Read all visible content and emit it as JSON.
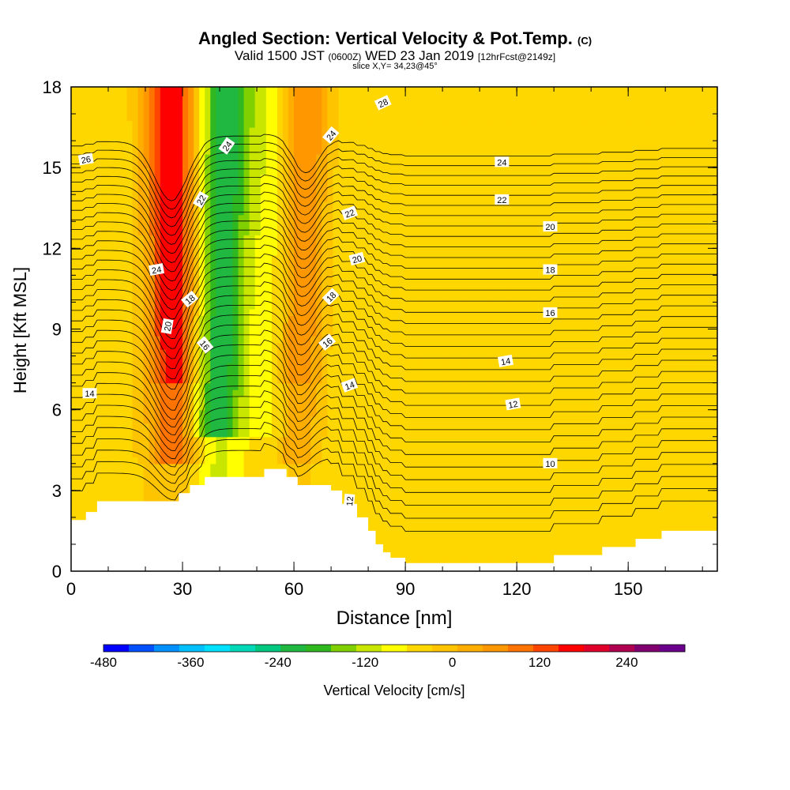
{
  "title": {
    "main": "Angled Section: Vertical Velocity & Pot.Temp.",
    "main_suffix": "(C)",
    "valid_prefix": "Valid 1500 JST",
    "valid_z": "(0600Z)",
    "valid_date": "WED 23 Jan 2019",
    "forecast": "[12hrFcst@2149z]",
    "slice": "slice X,Y= 34,23@45°"
  },
  "chart_data": {
    "type": "heatmap",
    "xlabel": "Distance [nm]",
    "ylabel": "Height [Kft MSL]",
    "xlim": [
      0,
      174
    ],
    "ylim": [
      0,
      18
    ],
    "x_ticks": [
      "0",
      "30",
      "60",
      "90",
      "120",
      "150"
    ],
    "y_ticks": [
      "0",
      "3",
      "6",
      "9",
      "12",
      "15",
      "18"
    ],
    "colorbar": {
      "label": "Vertical Velocity [cm/s]",
      "tick_labels": [
        "-480",
        "-360",
        "-240",
        "-120",
        "0",
        "120",
        "240"
      ],
      "tick_values": [
        -480,
        -360,
        -240,
        -120,
        0,
        120,
        240
      ],
      "range": [
        -480,
        320
      ],
      "step": 40,
      "colors": [
        "#0000ff",
        "#0050ff",
        "#0090ff",
        "#00c0ff",
        "#00e0ff",
        "#00d8b8",
        "#00c880",
        "#20b840",
        "#30b820",
        "#80d000",
        "#c8e600",
        "#ffff00",
        "#ffd700",
        "#ffc400",
        "#ffae00",
        "#ff9800",
        "#ff7400",
        "#ff4500",
        "#ff0000",
        "#e0002a",
        "#b00050",
        "#800070",
        "#6b008c"
      ]
    },
    "background_value": 20,
    "updraft_bands": [
      {
        "x_bottom": 28,
        "x_top": 27,
        "width": 5,
        "peak": 280
      },
      {
        "x_bottom": 60,
        "x_top": 64,
        "width": 4,
        "peak": 160
      }
    ],
    "downdraft_bands": [
      {
        "x_bottom": 38,
        "x_top": 42,
        "width": 5,
        "peak": -200
      },
      {
        "x_bottom": 56,
        "x_top": 52,
        "width": 3,
        "peak": -20
      }
    ],
    "terrain_profile": [
      [
        0,
        1.9
      ],
      [
        4,
        1.9
      ],
      [
        4,
        2.2
      ],
      [
        7,
        2.2
      ],
      [
        7,
        2.6
      ],
      [
        29,
        2.6
      ],
      [
        29,
        2.9
      ],
      [
        32,
        2.9
      ],
      [
        32,
        3.2
      ],
      [
        36,
        3.2
      ],
      [
        36,
        3.5
      ],
      [
        52,
        3.5
      ],
      [
        52,
        3.8
      ],
      [
        58,
        3.8
      ],
      [
        58,
        3.5
      ],
      [
        61,
        3.5
      ],
      [
        61,
        3.2
      ],
      [
        70,
        3.2
      ],
      [
        70,
        3.0
      ],
      [
        73,
        3.0
      ],
      [
        73,
        2.5
      ],
      [
        77,
        2.5
      ],
      [
        77,
        2.0
      ],
      [
        80,
        2.0
      ],
      [
        80,
        1.5
      ],
      [
        82,
        1.5
      ],
      [
        82,
        1.0
      ],
      [
        84,
        1.0
      ],
      [
        84,
        0.7
      ],
      [
        86,
        0.7
      ],
      [
        86,
        0.5
      ],
      [
        90,
        0.5
      ],
      [
        90,
        0.3
      ],
      [
        130,
        0.3
      ],
      [
        130,
        0.6
      ],
      [
        143,
        0.6
      ],
      [
        143,
        0.9
      ],
      [
        152,
        0.9
      ],
      [
        152,
        1.2
      ],
      [
        159,
        1.2
      ],
      [
        159,
        1.5
      ],
      [
        174,
        1.5
      ]
    ],
    "isotherm_labels": [
      {
        "text": "28",
        "x": 84,
        "y": 17.4,
        "rot": -25
      },
      {
        "text": "26",
        "x": 4,
        "y": 15.3,
        "rot": -10
      },
      {
        "text": "24",
        "x": 70,
        "y": 16.2,
        "rot": -50
      },
      {
        "text": "24",
        "x": 42,
        "y": 15.8,
        "rot": -55
      },
      {
        "text": "24",
        "x": 116,
        "y": 15.2,
        "rot": 0
      },
      {
        "text": "22",
        "x": 35,
        "y": 13.8,
        "rot": -60
      },
      {
        "text": "22",
        "x": 75,
        "y": 13.3,
        "rot": -20
      },
      {
        "text": "22",
        "x": 116,
        "y": 13.8,
        "rot": 0
      },
      {
        "text": "24",
        "x": 23,
        "y": 11.2,
        "rot": -10
      },
      {
        "text": "20",
        "x": 77,
        "y": 11.6,
        "rot": -15
      },
      {
        "text": "20",
        "x": 129,
        "y": 12.8,
        "rot": 0
      },
      {
        "text": "18",
        "x": 32,
        "y": 10.1,
        "rot": -40
      },
      {
        "text": "18",
        "x": 70,
        "y": 10.2,
        "rot": -45
      },
      {
        "text": "18",
        "x": 129,
        "y": 11.2,
        "rot": 0
      },
      {
        "text": "20",
        "x": 26,
        "y": 9.1,
        "rot": -80
      },
      {
        "text": "16",
        "x": 129,
        "y": 9.6,
        "rot": 0
      },
      {
        "text": "16",
        "x": 36,
        "y": 8.4,
        "rot": 50
      },
      {
        "text": "16",
        "x": 69,
        "y": 8.5,
        "rot": -40
      },
      {
        "text": "14",
        "x": 117,
        "y": 7.8,
        "rot": -10
      },
      {
        "text": "14",
        "x": 5,
        "y": 6.6,
        "rot": 0
      },
      {
        "text": "14",
        "x": 75,
        "y": 6.9,
        "rot": -20
      },
      {
        "text": "12",
        "x": 119,
        "y": 6.2,
        "rot": -10
      },
      {
        "text": "10",
        "x": 129,
        "y": 4.0,
        "rot": 0
      },
      {
        "text": "12",
        "x": 75,
        "y": 2.6,
        "rot": -85
      }
    ]
  }
}
